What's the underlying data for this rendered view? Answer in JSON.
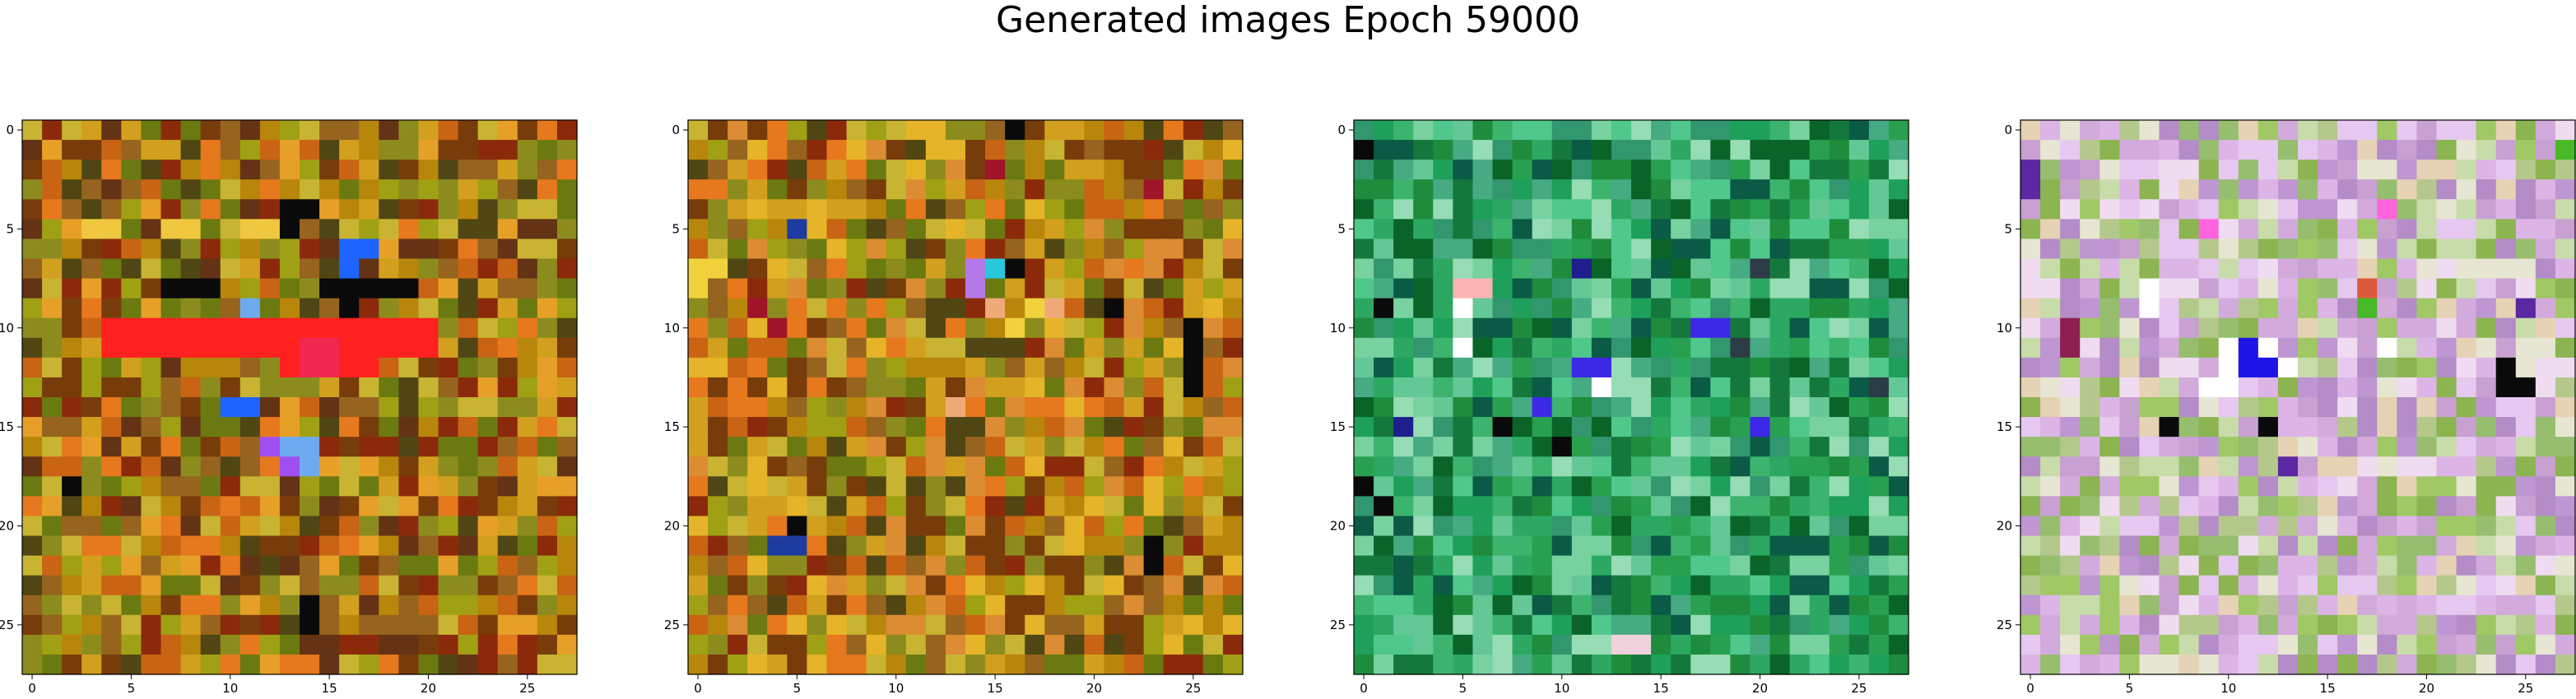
{
  "figure": {
    "title": "Generated images Epoch 59000"
  },
  "chart_data": [
    {
      "type": "heatmap",
      "title": "",
      "xlabel": "",
      "ylabel": "",
      "grid_size": 28,
      "xlim": [
        -0.5,
        27.5
      ],
      "ylim": [
        27.5,
        -0.5
      ],
      "x_ticks": [
        0,
        5,
        10,
        15,
        20,
        25
      ],
      "y_ticks": [
        0,
        5,
        10,
        15,
        20,
        25
      ],
      "grid": false,
      "palette": [
        "#b8860b",
        "#c86414",
        "#8b2a0a",
        "#6b7a10",
        "#d2a01e",
        "#a0a014",
        "#783c0a",
        "#e6781e",
        "#504614",
        "#96641e",
        "#c8b432",
        "#643214",
        "#e6a028",
        "#8c8c1e"
      ],
      "highlights": [
        {
          "color": "#ff2020",
          "cells": [
            [
              10,
              4
            ],
            [
              10,
              5
            ],
            [
              10,
              6
            ],
            [
              10,
              7
            ],
            [
              10,
              8
            ],
            [
              10,
              9
            ],
            [
              10,
              10
            ],
            [
              10,
              11
            ],
            [
              10,
              12
            ],
            [
              10,
              13
            ],
            [
              10,
              14
            ],
            [
              10,
              15
            ],
            [
              10,
              16
            ],
            [
              10,
              17
            ],
            [
              10,
              18
            ],
            [
              10,
              19
            ],
            [
              10,
              20
            ],
            [
              11,
              4
            ],
            [
              11,
              5
            ],
            [
              11,
              6
            ],
            [
              11,
              7
            ],
            [
              11,
              8
            ],
            [
              11,
              9
            ],
            [
              11,
              10
            ],
            [
              11,
              11
            ],
            [
              11,
              12
            ],
            [
              11,
              13
            ],
            [
              11,
              14
            ],
            [
              11,
              15
            ],
            [
              11,
              16
            ],
            [
              11,
              17
            ],
            [
              11,
              18
            ],
            [
              11,
              19
            ],
            [
              11,
              20
            ],
            [
              12,
              13
            ],
            [
              12,
              14
            ],
            [
              12,
              15
            ],
            [
              12,
              16
            ],
            [
              12,
              17
            ]
          ]
        },
        {
          "color": "#f02850",
          "cells": [
            [
              11,
              14
            ],
            [
              11,
              15
            ],
            [
              12,
              14
            ],
            [
              12,
              15
            ]
          ]
        },
        {
          "color": "#0a0a0a",
          "cells": [
            [
              4,
              13
            ],
            [
              5,
              13
            ],
            [
              4,
              14
            ],
            [
              8,
              7
            ],
            [
              8,
              8
            ],
            [
              8,
              9
            ],
            [
              8,
              15
            ],
            [
              8,
              16
            ],
            [
              8,
              17
            ],
            [
              8,
              18
            ],
            [
              8,
              19
            ],
            [
              9,
              16
            ],
            [
              18,
              2
            ],
            [
              24,
              14
            ],
            [
              25,
              14
            ]
          ]
        },
        {
          "color": "#1e64ff",
          "cells": [
            [
              6,
              16
            ],
            [
              6,
              17
            ],
            [
              7,
              16
            ],
            [
              14,
              10
            ],
            [
              14,
              11
            ]
          ]
        },
        {
          "color": "#6eaaf0",
          "cells": [
            [
              9,
              11
            ],
            [
              16,
              13
            ],
            [
              16,
              14
            ],
            [
              17,
              14
            ]
          ]
        },
        {
          "color": "#a050f0",
          "cells": [
            [
              17,
              13
            ],
            [
              16,
              12
            ]
          ]
        },
        {
          "color": "#f0c840",
          "cells": [
            [
              5,
              3
            ],
            [
              5,
              4
            ],
            [
              5,
              7
            ],
            [
              5,
              8
            ],
            [
              5,
              11
            ],
            [
              5,
              12
            ]
          ]
        }
      ]
    },
    {
      "type": "heatmap",
      "title": "",
      "xlabel": "",
      "ylabel": "",
      "grid_size": 28,
      "xlim": [
        -0.5,
        27.5
      ],
      "ylim": [
        27.5,
        -0.5
      ],
      "x_ticks": [
        0,
        5,
        10,
        15,
        20,
        25
      ],
      "y_ticks": [
        0,
        5,
        10,
        15,
        20,
        25
      ],
      "grid": false,
      "palette": [
        "#b8860b",
        "#c86414",
        "#8b2a0a",
        "#6b7a10",
        "#d2a01e",
        "#a0a014",
        "#783c0a",
        "#e6781e",
        "#504614",
        "#96641e",
        "#c8b432",
        "#e6b428",
        "#8c8c1e",
        "#dc8c32"
      ],
      "highlights": [
        {
          "color": "#b478e6",
          "cells": [
            [
              7,
              14
            ],
            [
              8,
              14
            ],
            [
              7,
              15
            ]
          ]
        },
        {
          "color": "#28c8dc",
          "cells": [
            [
              7,
              15
            ]
          ]
        },
        {
          "color": "#0a0a0a",
          "cells": [
            [
              0,
              16
            ],
            [
              7,
              16
            ],
            [
              9,
              21
            ],
            [
              10,
              25
            ],
            [
              11,
              25
            ],
            [
              12,
              25
            ],
            [
              13,
              25
            ],
            [
              21,
              23
            ],
            [
              22,
              23
            ],
            [
              20,
              5
            ]
          ]
        },
        {
          "color": "#1e3ca0",
          "cells": [
            [
              5,
              5
            ],
            [
              21,
              4
            ],
            [
              21,
              5
            ]
          ]
        },
        {
          "color": "#f0d23c",
          "cells": [
            [
              7,
              0
            ],
            [
              8,
              0
            ],
            [
              7,
              1
            ],
            [
              10,
              16
            ],
            [
              9,
              17
            ]
          ]
        },
        {
          "color": "#f0aa78",
          "cells": [
            [
              9,
              15
            ],
            [
              9,
              18
            ],
            [
              14,
              13
            ]
          ]
        },
        {
          "color": "#a0142a",
          "cells": [
            [
              9,
              3
            ],
            [
              10,
              4
            ],
            [
              2,
              15
            ],
            [
              3,
              23
            ]
          ]
        }
      ]
    },
    {
      "type": "heatmap",
      "title": "",
      "xlabel": "",
      "ylabel": "",
      "grid_size": 28,
      "xlim": [
        -0.5,
        27.5
      ],
      "ylim": [
        27.5,
        -0.5
      ],
      "x_ticks": [
        0,
        5,
        10,
        15,
        20,
        25
      ],
      "y_ticks": [
        0,
        5,
        10,
        15,
        20,
        25
      ],
      "grid": false,
      "palette": [
        "#1e8c3c",
        "#28a050",
        "#3cb46e",
        "#14783c",
        "#50c88c",
        "#2ca862",
        "#0a6428",
        "#64c896",
        "#78d2a0",
        "#46aa82",
        "#1ea05a",
        "#32966e",
        "#0a5a46",
        "#96dcb4"
      ],
      "highlights": [
        {
          "color": "#0a0a0a",
          "cells": [
            [
              1,
              0
            ],
            [
              9,
              1
            ],
            [
              15,
              7
            ],
            [
              16,
              10
            ],
            [
              18,
              0
            ],
            [
              19,
              1
            ]
          ]
        },
        {
          "color": "#fab4b4",
          "cells": [
            [
              8,
              5
            ],
            [
              8,
              6
            ],
            [
              9,
              5
            ]
          ]
        },
        {
          "color": "#ffffff",
          "cells": [
            [
              9,
              5
            ],
            [
              11,
              5
            ],
            [
              13,
              12
            ]
          ]
        },
        {
          "color": "#3c28e6",
          "cells": [
            [
              14,
              9
            ],
            [
              12,
              11
            ],
            [
              12,
              12
            ],
            [
              10,
              17
            ],
            [
              10,
              18
            ],
            [
              15,
              20
            ]
          ]
        },
        {
          "color": "#1e1e8c",
          "cells": [
            [
              7,
              11
            ],
            [
              15,
              2
            ]
          ]
        },
        {
          "color": "#f0d2dc",
          "cells": [
            [
              26,
              13
            ],
            [
              26,
              14
            ]
          ]
        },
        {
          "color": "#2c3c46",
          "cells": [
            [
              11,
              19
            ],
            [
              7,
              20
            ],
            [
              13,
              26
            ]
          ]
        }
      ]
    },
    {
      "type": "heatmap",
      "title": "",
      "xlabel": "",
      "ylabel": "",
      "grid_size": 28,
      "xlim": [
        -0.5,
        27.5
      ],
      "ylim": [
        27.5,
        -0.5
      ],
      "x_ticks": [
        0,
        5,
        10,
        15,
        20,
        25
      ],
      "y_ticks": [
        0,
        5,
        10,
        15,
        20,
        25
      ],
      "grid": false,
      "palette": [
        "#dcb4e6",
        "#c8dcaa",
        "#e6c8f0",
        "#b48cc8",
        "#a0c864",
        "#e6e6d2",
        "#c8a0d2",
        "#8cb450",
        "#f0dcf0",
        "#b4c88c",
        "#d2aadc",
        "#96be6e",
        "#e6d2b4",
        "#be96d2"
      ],
      "highlights": [
        {
          "color": "#0a0a0a",
          "cells": [
            [
              15,
              7
            ],
            [
              13,
              24
            ],
            [
              13,
              25
            ],
            [
              12,
              24
            ],
            [
              15,
              12
            ]
          ]
        },
        {
          "color": "#1e14e6",
          "cells": [
            [
              12,
              11
            ],
            [
              12,
              12
            ],
            [
              11,
              11
            ]
          ]
        },
        {
          "color": "#ffffff",
          "cells": [
            [
              8,
              6
            ],
            [
              9,
              6
            ],
            [
              11,
              10
            ],
            [
              11,
              12
            ],
            [
              12,
              10
            ],
            [
              12,
              13
            ],
            [
              13,
              9
            ],
            [
              13,
              10
            ],
            [
              11,
              18
            ]
          ]
        },
        {
          "color": "#5a28a0",
          "cells": [
            [
              2,
              0
            ],
            [
              3,
              0
            ],
            [
              9,
              25
            ],
            [
              17,
              13
            ]
          ]
        },
        {
          "color": "#ff64dc",
          "cells": [
            [
              5,
              9
            ],
            [
              4,
              18
            ]
          ]
        },
        {
          "color": "#8c1e50",
          "cells": [
            [
              10,
              2
            ],
            [
              11,
              2
            ]
          ]
        },
        {
          "color": "#48ba28",
          "cells": [
            [
              9,
              17
            ],
            [
              8,
              17
            ],
            [
              1,
              27
            ]
          ]
        },
        {
          "color": "#dc5a3c",
          "cells": [
            [
              8,
              17
            ]
          ]
        }
      ]
    }
  ]
}
